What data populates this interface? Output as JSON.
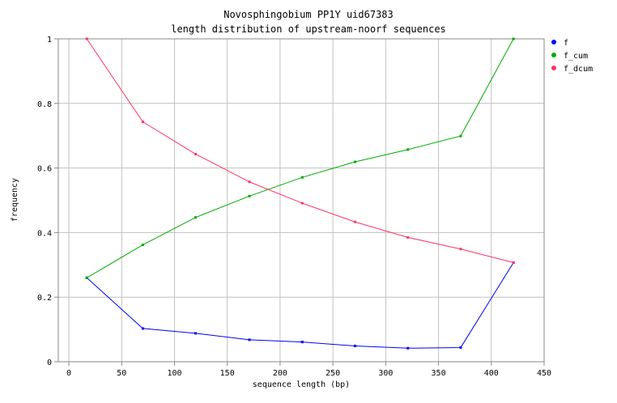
{
  "chart_data": {
    "type": "line",
    "title": "Novosphingobium PP1Y uid67383",
    "subtitle": "length distribution of upstream-noorf sequences",
    "xlabel": "sequence length (bp)",
    "ylabel": "frequency",
    "xlim": [
      -10,
      450
    ],
    "ylim": [
      0,
      1
    ],
    "xticks": [
      "0",
      "50",
      "100",
      "150",
      "200",
      "250",
      "300",
      "350",
      "400",
      "450"
    ],
    "yticks": [
      "0",
      "0.2",
      "0.4",
      "0.6",
      "0.8",
      "1"
    ],
    "grid": true,
    "legend_position": "right",
    "x": [
      17,
      70,
      120,
      171,
      221,
      271,
      321,
      371,
      421
    ],
    "series": [
      {
        "name": "f",
        "color": "#0000ff",
        "values": [
          0.26,
          0.103,
          0.088,
          0.068,
          0.061,
          0.049,
          0.042,
          0.044,
          0.307
        ]
      },
      {
        "name": "f_cum",
        "color": "#00aa00",
        "values": [
          0.26,
          0.362,
          0.447,
          0.513,
          0.571,
          0.619,
          0.657,
          0.699,
          1.0
        ]
      },
      {
        "name": "f_dcum",
        "color": "#ff3366",
        "values": [
          1.0,
          0.743,
          0.643,
          0.557,
          0.491,
          0.433,
          0.385,
          0.349,
          0.307
        ]
      }
    ]
  }
}
